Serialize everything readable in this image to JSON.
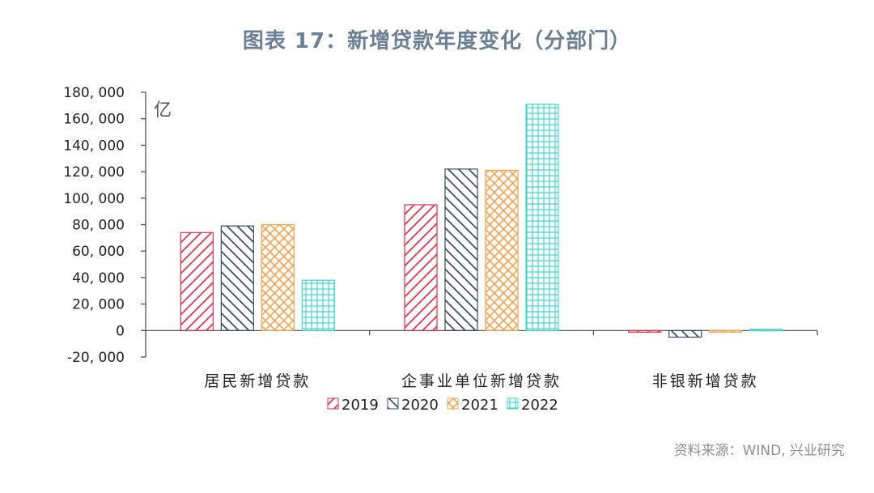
{
  "title": "图表 17：新增贷款年度变化（分部门）",
  "source": "资料来源：WIND, 兴业研究",
  "chart_data": {
    "type": "bar",
    "unit": "亿",
    "categories": [
      "居民新增贷款",
      "企事业单位新增贷款",
      "非银新增贷款"
    ],
    "series": [
      {
        "name": "2019",
        "values": [
          74000,
          95000,
          -1000
        ],
        "color": "#e0304a"
      },
      {
        "name": "2020",
        "values": [
          79000,
          122000,
          -5000
        ],
        "color": "#3d4a63"
      },
      {
        "name": "2021",
        "values": [
          80000,
          121000,
          -1000
        ],
        "color": "#f5a04a"
      },
      {
        "name": "2022",
        "values": [
          38000,
          171000,
          1000
        ],
        "color": "#3fd7cf"
      }
    ],
    "y_ticks": [
      "180, 000",
      "160, 000",
      "140, 000",
      "120, 000",
      "100, 000",
      "80, 000",
      "60, 000",
      "40, 000",
      "20, 000",
      "0",
      "-20, 000"
    ],
    "ylim": [
      -20000,
      180000
    ],
    "legend_position": "bottom",
    "grid": false
  }
}
